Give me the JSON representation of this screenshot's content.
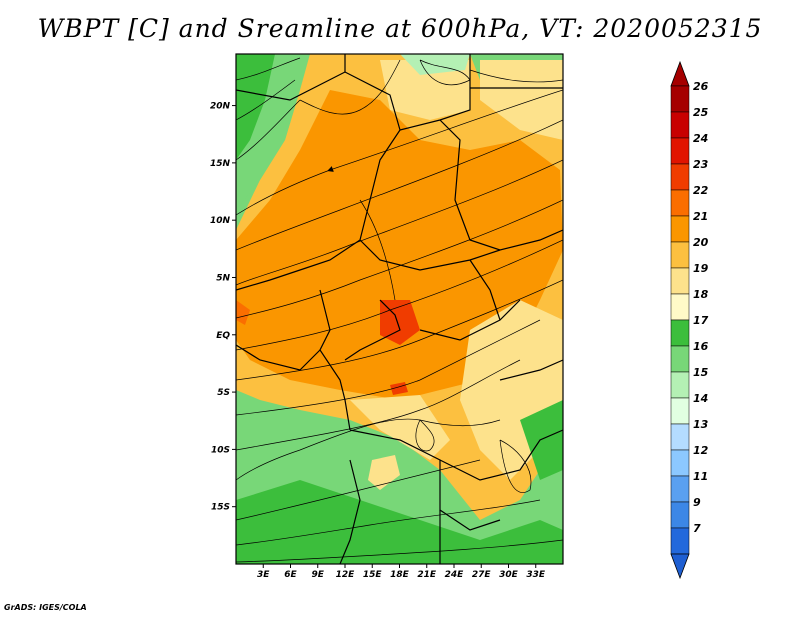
{
  "title": "WBPT [C] and Sreamline at 600hPa, VT: 2020052315",
  "credit": "GrADS: IGES/COLA",
  "map": {
    "lon_range": [
      0,
      36
    ],
    "lat_range": [
      -20,
      24.5
    ],
    "lat_ticks": [
      {
        "value": 20,
        "label": "20N"
      },
      {
        "value": 15,
        "label": "15N"
      },
      {
        "value": 10,
        "label": "10N"
      },
      {
        "value": 5,
        "label": "5N"
      },
      {
        "value": 0,
        "label": "EQ"
      },
      {
        "value": -5,
        "label": "5S"
      },
      {
        "value": -10,
        "label": "10S"
      },
      {
        "value": -15,
        "label": "15S"
      }
    ],
    "lon_ticks": [
      {
        "value": 3,
        "label": "3E"
      },
      {
        "value": 6,
        "label": "6E"
      },
      {
        "value": 9,
        "label": "9E"
      },
      {
        "value": 12,
        "label": "12E"
      },
      {
        "value": 15,
        "label": "15E"
      },
      {
        "value": 18,
        "label": "18E"
      },
      {
        "value": 21,
        "label": "21E"
      },
      {
        "value": 24,
        "label": "24E"
      },
      {
        "value": 27,
        "label": "27E"
      },
      {
        "value": 30,
        "label": "30E"
      },
      {
        "value": 33,
        "label": "33E"
      }
    ]
  },
  "colorbar": {
    "levels": [
      {
        "label": "26",
        "color": "#a50000"
      },
      {
        "label": "25",
        "color": "#c80000"
      },
      {
        "label": "24",
        "color": "#e11400"
      },
      {
        "label": "23",
        "color": "#f03c00"
      },
      {
        "label": "22",
        "color": "#fa6e00"
      },
      {
        "label": "21",
        "color": "#fa9600"
      },
      {
        "label": "20",
        "color": "#fcc040"
      },
      {
        "label": "19",
        "color": "#fde28c"
      },
      {
        "label": "18",
        "color": "#fffac8"
      },
      {
        "label": "17",
        "color": "#3cbe3c"
      },
      {
        "label": "16",
        "color": "#78d778"
      },
      {
        "label": "15",
        "color": "#b4f0b4"
      },
      {
        "label": "14",
        "color": "#e1ffe1"
      },
      {
        "label": "13",
        "color": "#b4dcff"
      },
      {
        "label": "12",
        "color": "#8cc8ff"
      },
      {
        "label": "11",
        "color": "#5aa0f0"
      },
      {
        "label": "9",
        "color": "#3c87e6"
      },
      {
        "label": "7",
        "color": "#2369dc"
      }
    ],
    "bottom_color": "#1e5fd2"
  }
}
